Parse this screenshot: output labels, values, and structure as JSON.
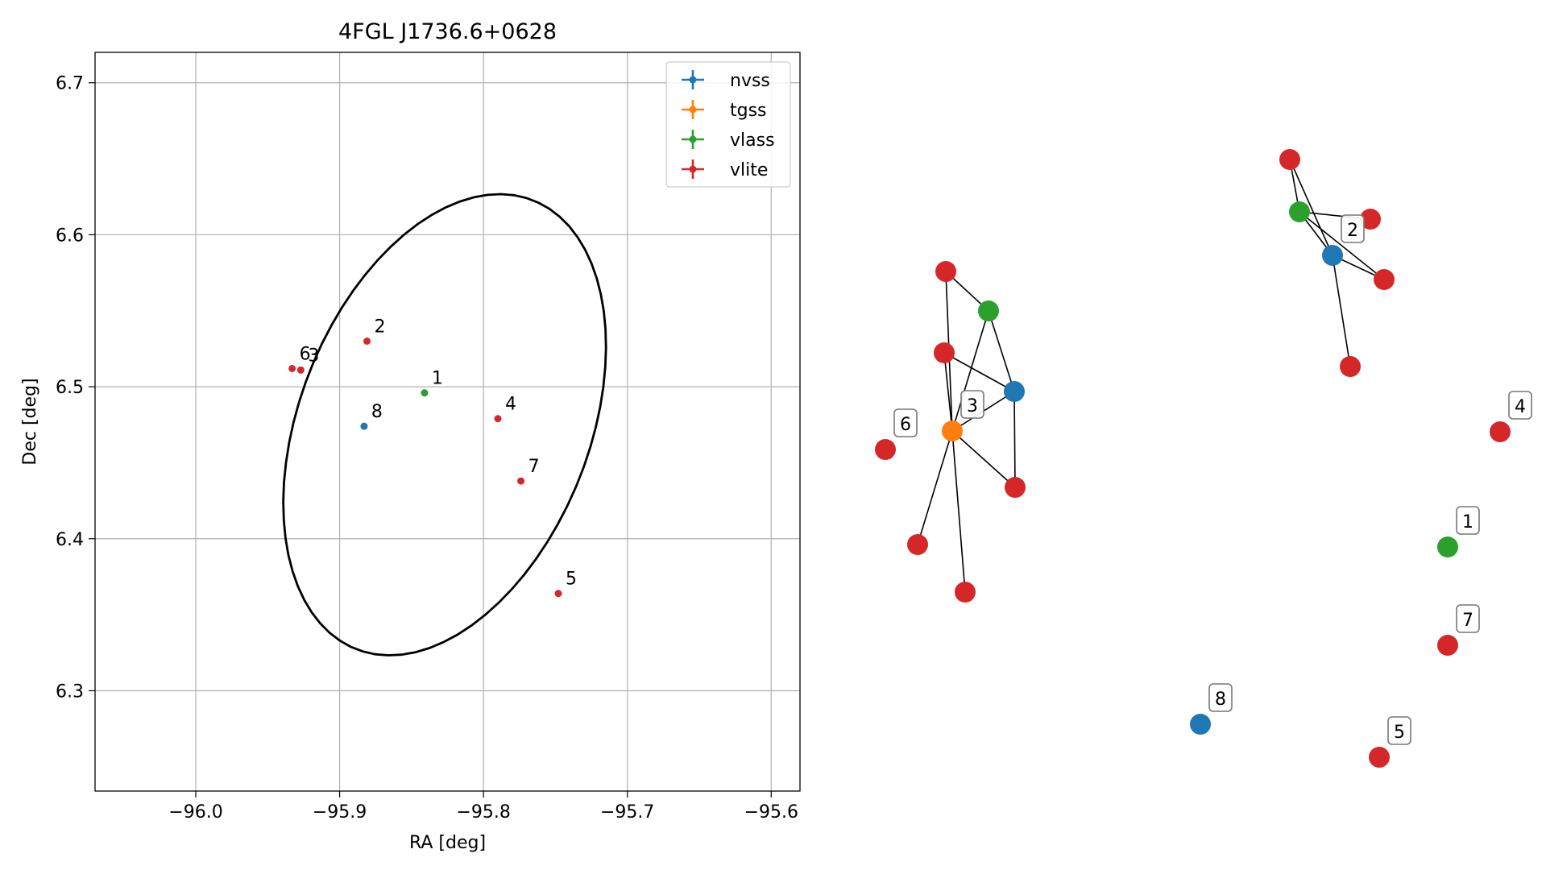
{
  "chart_data": [
    {
      "type": "scatter",
      "title": "4FGL J1736.6+0628",
      "xlabel": "RA [deg]",
      "ylabel": "Dec [deg]",
      "xlim": [
        -96.07,
        -95.58
      ],
      "ylim": [
        6.234,
        6.72
      ],
      "xticks": [
        -96.0,
        -95.9,
        -95.8,
        -95.7,
        -95.6
      ],
      "xtick_labels": [
        "−96.0",
        "−95.9",
        "−95.8",
        "−95.7",
        "−95.6"
      ],
      "yticks": [
        6.3,
        6.4,
        6.5,
        6.6,
        6.7
      ],
      "ytick_labels": [
        "6.3",
        "6.4",
        "6.5",
        "6.6",
        "6.7"
      ],
      "grid": true,
      "legend_position": "top-right",
      "series": [
        {
          "name": "nvss",
          "color": "#1f77b4",
          "points": [
            {
              "x": -95.883,
              "y": 6.474
            }
          ]
        },
        {
          "name": "tgss",
          "color": "#ff7f0e",
          "points": []
        },
        {
          "name": "vlass",
          "color": "#2ca02c",
          "points": [
            {
              "x": -95.841,
              "y": 6.496
            }
          ]
        },
        {
          "name": "vlite",
          "color": "#d62728",
          "points": [
            {
              "x": -95.881,
              "y": 6.53
            },
            {
              "x": -95.927,
              "y": 6.511
            },
            {
              "x": -95.79,
              "y": 6.479
            },
            {
              "x": -95.748,
              "y": 6.364
            },
            {
              "x": -95.933,
              "y": 6.512
            },
            {
              "x": -95.774,
              "y": 6.438
            }
          ]
        }
      ],
      "labels": [
        {
          "text": "1",
          "x": -95.841,
          "y": 6.496
        },
        {
          "text": "2",
          "x": -95.881,
          "y": 6.53
        },
        {
          "text": "3",
          "x": -95.927,
          "y": 6.511
        },
        {
          "text": "4",
          "x": -95.79,
          "y": 6.479
        },
        {
          "text": "5",
          "x": -95.748,
          "y": 6.364
        },
        {
          "text": "6",
          "x": -95.933,
          "y": 6.512
        },
        {
          "text": "7",
          "x": -95.774,
          "y": 6.438
        },
        {
          "text": "8",
          "x": -95.883,
          "y": 6.474
        }
      ],
      "ellipse": {
        "center": [
          -95.827,
          6.475
        ],
        "semi_major_deg": 0.16,
        "semi_minor_deg": 0.1,
        "angle_deg": 66
      }
    },
    {
      "type": "network",
      "nodes": [
        {
          "id": "a1",
          "color": "#d62728",
          "label": ""
        },
        {
          "id": "a2",
          "color": "#2ca02c",
          "label": ""
        },
        {
          "id": "a3",
          "color": "#d62728",
          "label": ""
        },
        {
          "id": "a4",
          "color": "#1f77b4",
          "label": "2"
        },
        {
          "id": "a5",
          "color": "#d62728",
          "label": ""
        },
        {
          "id": "a6",
          "color": "#d62728",
          "label": ""
        },
        {
          "id": "b1",
          "color": "#d62728",
          "label": ""
        },
        {
          "id": "b2",
          "color": "#2ca02c",
          "label": ""
        },
        {
          "id": "b3",
          "color": "#d62728",
          "label": ""
        },
        {
          "id": "b4",
          "color": "#1f77b4",
          "label": ""
        },
        {
          "id": "b5",
          "color": "#ff7f0e",
          "label": "3"
        },
        {
          "id": "b6",
          "color": "#d62728",
          "label": ""
        },
        {
          "id": "b7",
          "color": "#d62728",
          "label": ""
        },
        {
          "id": "b8",
          "color": "#d62728",
          "label": ""
        },
        {
          "id": "n6",
          "color": "#d62728",
          "label": "6"
        },
        {
          "id": "n4",
          "color": "#d62728",
          "label": "4"
        },
        {
          "id": "n1",
          "color": "#2ca02c",
          "label": "1"
        },
        {
          "id": "n7",
          "color": "#d62728",
          "label": "7"
        },
        {
          "id": "n8",
          "color": "#1f77b4",
          "label": "8"
        },
        {
          "id": "n5",
          "color": "#d62728",
          "label": "5"
        }
      ],
      "edges": [
        [
          "a1",
          "a2"
        ],
        [
          "a1",
          "a4"
        ],
        [
          "a2",
          "a3"
        ],
        [
          "a2",
          "a4"
        ],
        [
          "a2",
          "a5"
        ],
        [
          "a4",
          "a5"
        ],
        [
          "a4",
          "a6"
        ],
        [
          "b1",
          "b2"
        ],
        [
          "b1",
          "b5"
        ],
        [
          "b2",
          "b4"
        ],
        [
          "b2",
          "b5"
        ],
        [
          "b3",
          "b4"
        ],
        [
          "b3",
          "b5"
        ],
        [
          "b4",
          "b5"
        ],
        [
          "b4",
          "b6"
        ],
        [
          "b5",
          "b6"
        ],
        [
          "b5",
          "b7"
        ],
        [
          "b5",
          "b8"
        ]
      ]
    }
  ]
}
